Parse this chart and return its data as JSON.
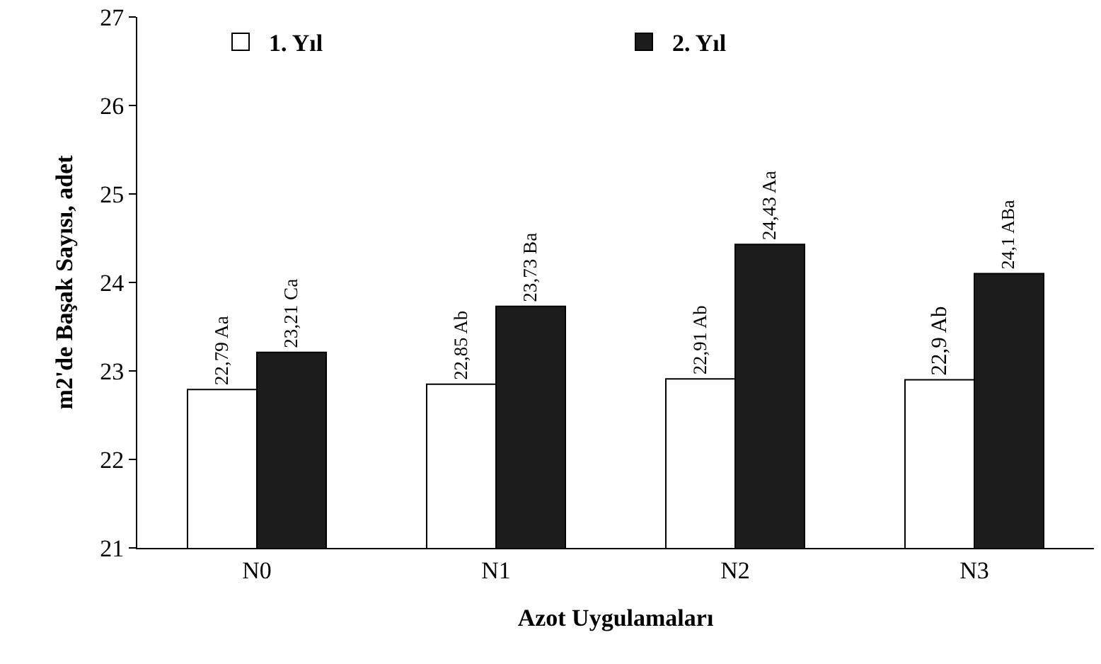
{
  "chart_data": {
    "type": "bar",
    "xlabel": "Azot Uygulamaları",
    "ylabel": "m2'de Başak Sayısı, adet",
    "categories": [
      "N0",
      "N1",
      "N2",
      "N3"
    ],
    "series": [
      {
        "name": "1. Yıl",
        "color": "#ffffff",
        "values": [
          22.79,
          22.85,
          22.91,
          22.9
        ],
        "value_labels": [
          "22,79 Aa",
          "22,85 Ab",
          "22,91 Ab",
          "22,9 Ab"
        ]
      },
      {
        "name": "2. Yıl",
        "color": "#1c1c1c",
        "values": [
          23.21,
          23.73,
          24.43,
          24.1
        ],
        "value_labels": [
          "23,21 Ca",
          "23,73 Ba",
          "24,43 Aa",
          "24,1 ABa"
        ]
      }
    ],
    "ylim": [
      21,
      27
    ],
    "yticks": [
      21,
      22,
      23,
      24,
      25,
      26,
      27
    ],
    "grid": false,
    "legend": "top"
  }
}
